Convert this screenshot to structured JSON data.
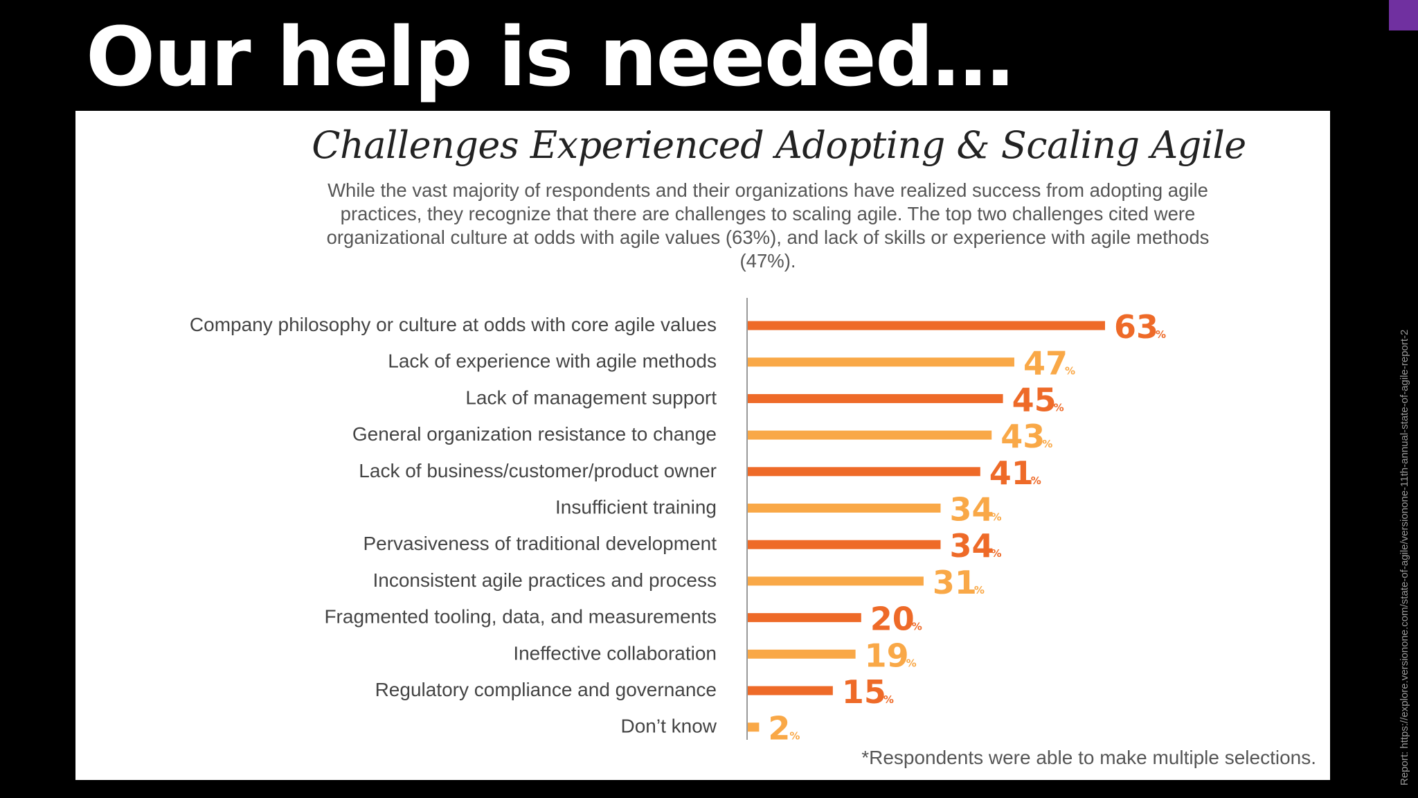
{
  "slide": {
    "title": "Our help is needed…",
    "source_note": "Report: https://explore.versionone.com/state-of-agile/versionone-11th-annual-state-of-agile-report-2",
    "accent_color": "#7030a0"
  },
  "footnote": "*Respondents were able to make multiple selections.",
  "chart_data": {
    "type": "bar",
    "orientation": "horizontal",
    "title": "Challenges Experienced Adopting & Scaling Agile",
    "subtitle": "While the vast majority of respondents and their organizations have realized success from adopting agile practices, they recognize that there are challenges to scaling agile. The top two challenges cited were organizational culture at odds with agile values (63%), and lack of skills or experience with agile methods (47%).",
    "categories": [
      "Company philosophy or culture at odds with core agile values",
      "Lack of experience with agile methods",
      "Lack of management support",
      "General organization resistance to change",
      "Lack of business/customer/product owner",
      "Insufficient training",
      "Pervasiveness of traditional development",
      "Inconsistent agile practices and process",
      "Fragmented tooling, data, and measurements",
      "Ineffective collaboration",
      "Regulatory compliance and governance",
      "Don’t know"
    ],
    "values": [
      63,
      47,
      45,
      43,
      41,
      34,
      34,
      31,
      20,
      19,
      15,
      2
    ],
    "value_suffix": "%",
    "xlim": [
      0,
      100
    ],
    "grid": false,
    "colors": [
      "#ee6a28",
      "#f9a847"
    ]
  }
}
